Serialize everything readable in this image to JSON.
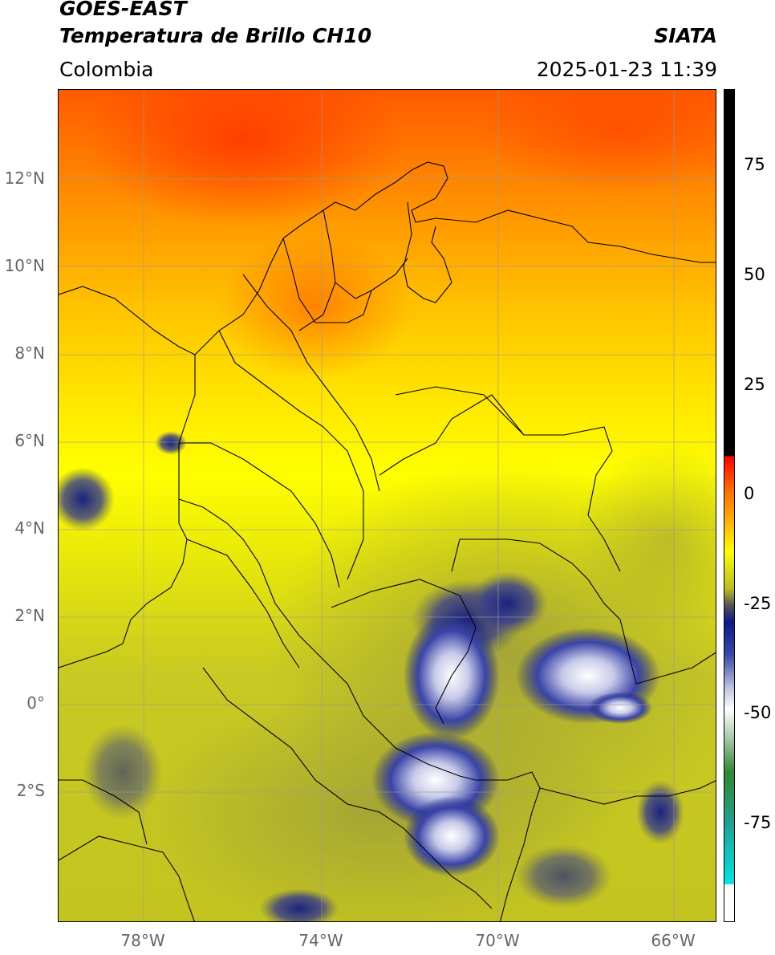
{
  "header": {
    "satellite": "GOES-EAST",
    "product": "Temperatura de Brillo CH10",
    "region": "Colombia",
    "agency": "SIATA",
    "datetime": "2025-01-23 11:39"
  },
  "axes": {
    "lat_labels": [
      "12°N",
      "10°N",
      "8°N",
      "6°N",
      "4°N",
      "2°N",
      "0°",
      "2°S"
    ],
    "lon_labels": [
      "78°W",
      "74°W",
      "70°W",
      "66°W"
    ]
  },
  "colorbar": {
    "labels": [
      "75",
      "50",
      "25",
      "0",
      "-25",
      "-50",
      "-75"
    ],
    "colors": {
      "black": "#000000",
      "red": "#ff0000",
      "orange": "#ff8c00",
      "yellow": "#ffff00",
      "olive": "#bdbd1f",
      "gray": "#555555",
      "navy": "#0a1a8c",
      "white": "#ffffff",
      "green": "#2e8b2e",
      "cyan": "#00e5e5"
    }
  }
}
